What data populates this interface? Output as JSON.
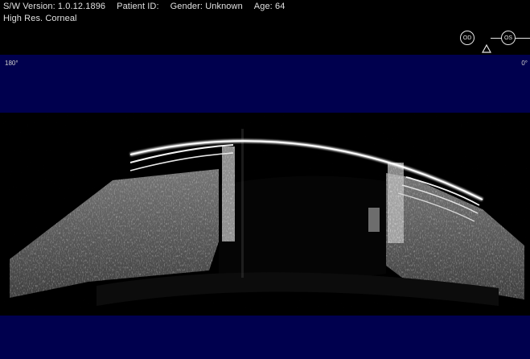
{
  "header": {
    "sw_version": "S/W Version: 1.0.12.1896",
    "patient_id": "Patient ID:",
    "gender": "Gender: Unknown",
    "age": "Age: 64",
    "scan_mode": "High Res. Corneal"
  },
  "eye_selector": {
    "od_label": "OD",
    "os_label": "OS",
    "selected": "OS",
    "warning_icon": "warning-triangle-icon"
  },
  "scan_labels": {
    "left_angle": "180°",
    "right_angle": "0°"
  },
  "colors": {
    "band_blue": "#00004e",
    "background": "#000000",
    "text": "#e0e0e0"
  }
}
